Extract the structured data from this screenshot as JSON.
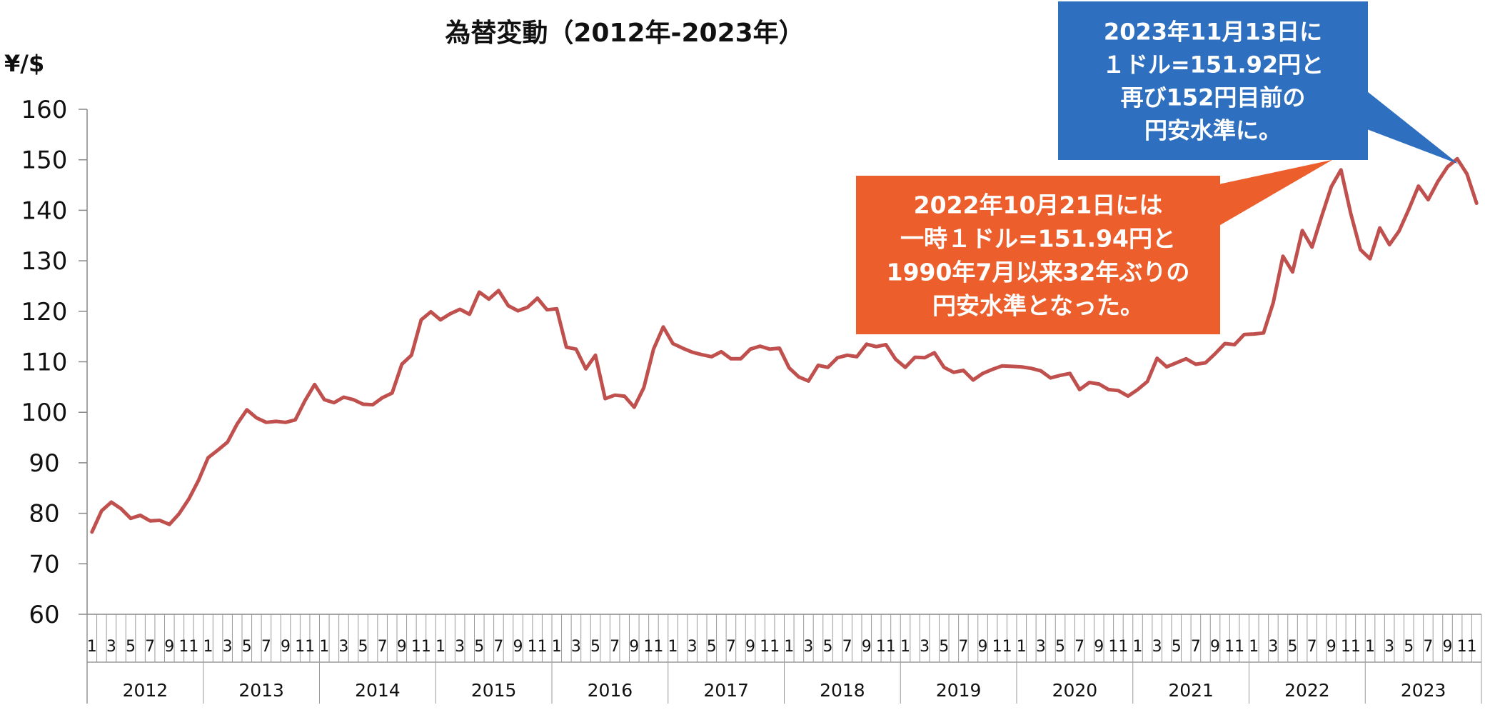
{
  "chart_data": {
    "type": "line",
    "title": "為替変動（2012年-2023年）",
    "ylabel": "¥/$",
    "ylim": [
      60,
      160
    ],
    "yticks": [
      60,
      70,
      80,
      90,
      100,
      110,
      120,
      130,
      140,
      150,
      160
    ],
    "grid": false,
    "years": [
      "2012",
      "2013",
      "2014",
      "2015",
      "2016",
      "2017",
      "2018",
      "2019",
      "2020",
      "2021",
      "2022",
      "2023"
    ],
    "month_labels": [
      "1",
      "",
      "3",
      "",
      "5",
      "",
      "7",
      "",
      "9",
      "",
      "11",
      ""
    ],
    "series": [
      {
        "color": "#c0504d",
        "values": [
          76.3,
          80.5,
          82.2,
          80.9,
          79.0,
          79.6,
          78.5,
          78.6,
          77.8,
          79.9,
          82.8,
          86.5,
          91.0,
          92.5,
          94.1,
          97.7,
          100.5,
          98.9,
          98.0,
          98.2,
          98.0,
          98.5,
          102.3,
          105.5,
          102.5,
          101.9,
          103.0,
          102.5,
          101.6,
          101.5,
          102.9,
          103.8,
          109.5,
          111.3,
          118.3,
          119.9,
          118.3,
          119.5,
          120.4,
          119.4,
          123.8,
          122.4,
          124.1,
          121.1,
          120.1,
          120.8,
          122.6,
          120.3,
          120.5,
          112.9,
          112.5,
          108.6,
          111.3,
          102.7,
          103.4,
          103.2,
          101.0,
          104.9,
          112.5,
          116.9,
          113.6,
          112.7,
          111.9,
          111.4,
          111.0,
          112.0,
          110.6,
          110.6,
          112.5,
          113.1,
          112.5,
          112.7,
          108.8,
          107.0,
          106.2,
          109.3,
          108.9,
          110.8,
          111.3,
          111.0,
          113.5,
          113.0,
          113.4,
          110.5,
          108.9,
          110.9,
          110.8,
          111.8,
          108.9,
          107.9,
          108.3,
          106.4,
          107.7,
          108.5,
          109.2,
          109.1,
          109.0,
          108.7,
          108.2,
          106.8,
          107.3,
          107.7,
          104.5,
          105.9,
          105.6,
          104.5,
          104.3,
          103.2,
          104.5,
          106.1,
          110.7,
          109.0,
          109.8,
          110.6,
          109.5,
          109.8,
          111.6,
          113.6,
          113.4,
          115.4,
          115.5,
          115.7,
          121.7,
          130.9,
          127.8,
          136.0,
          132.7,
          138.8,
          144.7,
          148.0,
          139.4,
          132.2,
          130.4,
          136.5,
          133.2,
          135.9,
          140.2,
          144.8,
          142.1,
          145.7,
          148.6,
          150.2,
          147.2,
          141.4
        ]
      }
    ],
    "annotations": [
      {
        "lines": [
          "2023年11月13日に",
          "１ドル=151.92円と",
          "再び152円目前の",
          "円安水準に。"
        ],
        "color": "#2e6fc0",
        "points_to": [
          "2023",
          "11"
        ]
      },
      {
        "lines": [
          "2022年10月21日には",
          "一時１ドル=151.94円と",
          "1990年7月以来32年ぶりの",
          "円安水準となった。"
        ],
        "color": "#ec5f2c",
        "points_to": [
          "2022",
          "10"
        ]
      }
    ]
  }
}
